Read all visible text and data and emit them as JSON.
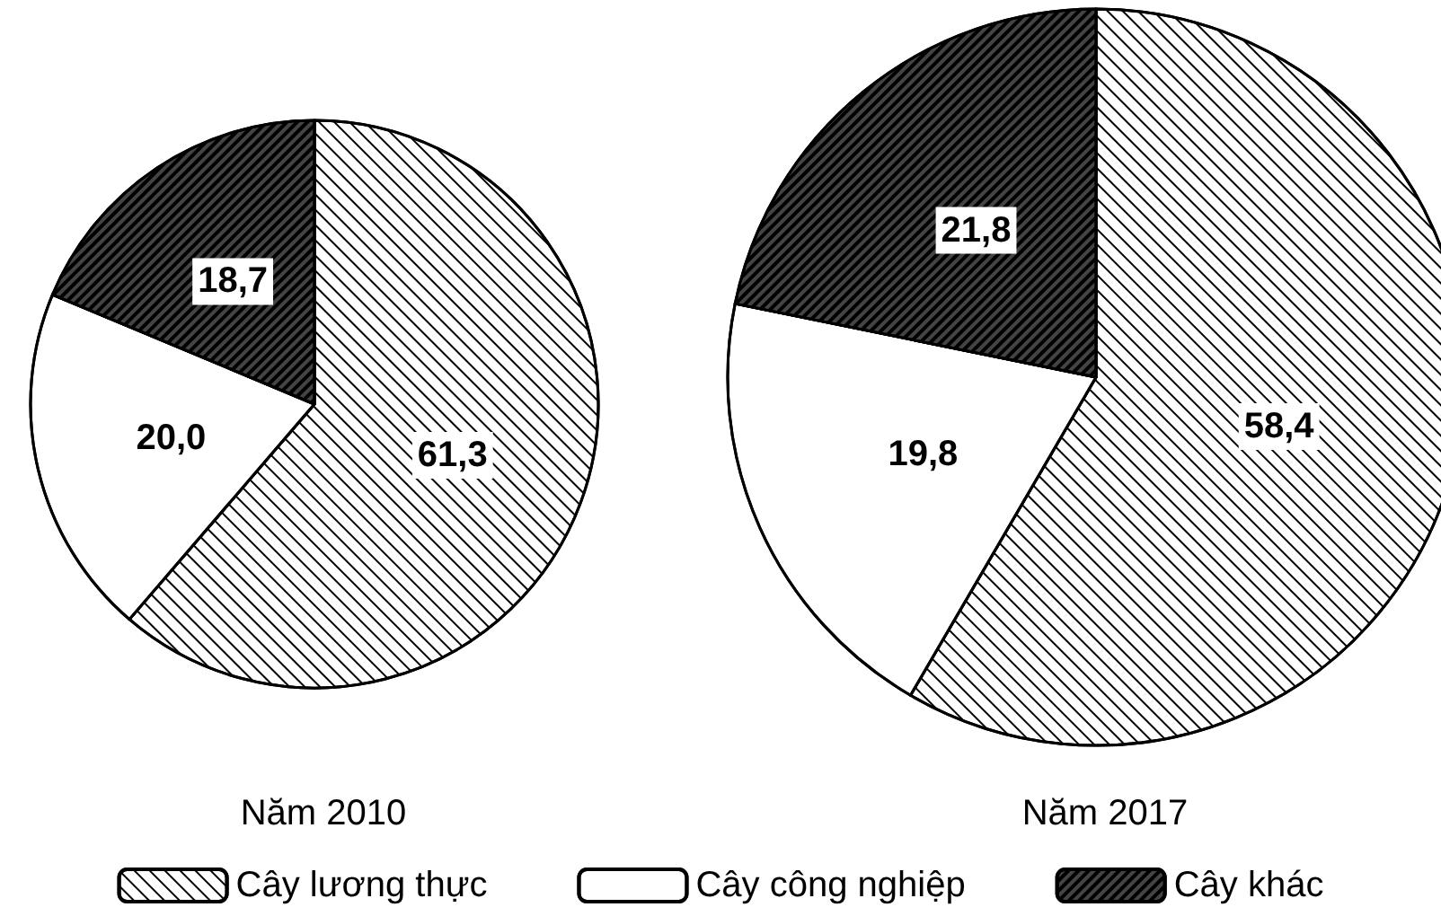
{
  "chart_data": {
    "type": "pie",
    "categories": [
      "Cây lương thực",
      "Cây công nghiệp",
      "Cây khác"
    ],
    "colors": [
      "#ffffff",
      "#ffffff",
      "#444444"
    ],
    "legend": "bottom",
    "series": [
      {
        "name": "Năm 2010",
        "values": [
          61.3,
          20.0,
          18.7
        ],
        "value_labels": [
          "61,3",
          "20,0",
          "18,7"
        ]
      },
      {
        "name": "Năm 2017",
        "values": [
          58.4,
          19.8,
          21.8
        ],
        "value_labels": [
          "58,4",
          "19,8",
          "21,8"
        ]
      }
    ]
  }
}
